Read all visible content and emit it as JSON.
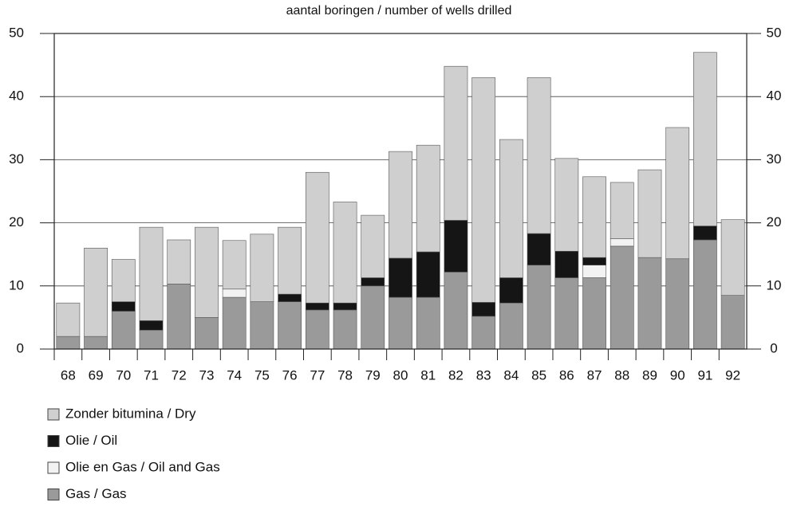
{
  "chart_data": {
    "type": "stacked_bar",
    "title": "aantal boringen / number of wells drilled",
    "categories": [
      "68",
      "69",
      "70",
      "71",
      "72",
      "73",
      "74",
      "75",
      "76",
      "77",
      "78",
      "79",
      "80",
      "81",
      "82",
      "83",
      "84",
      "85",
      "86",
      "87",
      "88",
      "89",
      "90",
      "91",
      "92"
    ],
    "series": [
      {
        "name": "Gas / Gas",
        "color": "#9a9a9a",
        "values": [
          2,
          2,
          6,
          3,
          10.3,
          5,
          8.2,
          7.5,
          7.5,
          6.2,
          6.2,
          10,
          8.2,
          8.2,
          12.2,
          5.2,
          7.3,
          13.3,
          11.3,
          11.3,
          16.3,
          14.5,
          14.3,
          17.3,
          8.5
        ]
      },
      {
        "name": "Olie en Gas / Oil and Gas",
        "color": "#f2f2f2",
        "values": [
          0,
          0,
          0,
          0,
          0,
          0,
          1.3,
          0,
          0,
          0,
          0,
          0,
          0,
          0,
          0,
          0,
          0,
          0,
          0,
          2,
          1.2,
          0,
          0,
          0,
          0
        ]
      },
      {
        "name": "Olie / Oil",
        "color": "#151515",
        "values": [
          0,
          0,
          1.5,
          1.5,
          0,
          0,
          0,
          0,
          1.2,
          1.1,
          1.1,
          1.3,
          6.2,
          7.2,
          8.2,
          2.2,
          4,
          5,
          4.2,
          1.2,
          0,
          0,
          0,
          2.2,
          0
        ]
      },
      {
        "name": "Zonder bitumina / Dry",
        "color": "#cfcfcf",
        "values": [
          5.3,
          14,
          6.7,
          14.8,
          7,
          14.3,
          7.7,
          10.7,
          10.6,
          20.7,
          16,
          9.9,
          16.9,
          16.9,
          24.4,
          35.6,
          21.9,
          24.7,
          14.7,
          12.8,
          8.9,
          13.9,
          20.8,
          27.5,
          12
        ]
      }
    ],
    "ylim": [
      0,
      50
    ],
    "yticks": [
      0,
      10,
      20,
      30,
      40,
      50
    ],
    "grid": true
  }
}
